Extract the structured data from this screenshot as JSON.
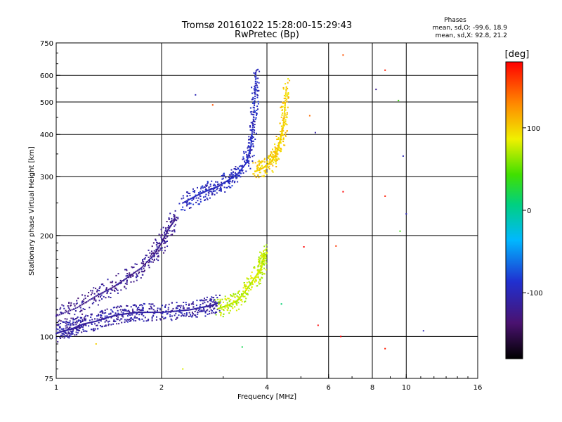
{
  "header": {
    "title_line1": "Tromsø 20161022 15:28:00-15:29:43",
    "title_line2": "RwPretec (Bp)",
    "phases_title": "Phases",
    "phases_o": "mean, sd,O: -99.6, 18.9",
    "phases_x": "mean, sd,X:  92.8, 21.2"
  },
  "colorbar": {
    "label": "[deg]",
    "ticks": [
      {
        "label": "100",
        "value": 100
      },
      {
        "label": "0",
        "value": 0
      },
      {
        "label": "-100",
        "value": -100
      }
    ],
    "range": [
      -180,
      180
    ]
  },
  "chart_data": {
    "type": "scatter",
    "xlabel": "Frequency [MHz]",
    "ylabel": "Stationary phase Virtual Height [km]",
    "xscale": "log",
    "yscale": "log",
    "xlim": [
      1,
      16
    ],
    "ylim": [
      75,
      750
    ],
    "xticks": [
      {
        "v": 1,
        "label": "1"
      },
      {
        "v": 2,
        "label": "2"
      },
      {
        "v": 4,
        "label": "4"
      },
      {
        "v": 6,
        "label": "6"
      },
      {
        "v": 8,
        "label": "8"
      },
      {
        "v": 10,
        "label": "10"
      },
      {
        "v": 16,
        "label": "16"
      }
    ],
    "xgrid": [
      2,
      4,
      6,
      8,
      10
    ],
    "yticks": [
      {
        "v": 75,
        "label": "75"
      },
      {
        "v": 100,
        "label": "100"
      },
      {
        "v": 200,
        "label": "200"
      },
      {
        "v": 300,
        "label": "300"
      },
      {
        "v": 400,
        "label": "400"
      },
      {
        "v": 500,
        "label": "500"
      },
      {
        "v": 600,
        "label": "600"
      },
      {
        "v": 750,
        "label": "750"
      }
    ],
    "ygrid": [
      100,
      200,
      300,
      400,
      500,
      600
    ],
    "grid": true,
    "traces": [
      {
        "color_deg": -110,
        "points": [
          [
            1.0,
            102
          ],
          [
            1.05,
            104
          ],
          [
            1.1,
            105
          ],
          [
            1.15,
            107
          ],
          [
            1.2,
            109
          ],
          [
            1.3,
            111
          ],
          [
            1.4,
            114
          ],
          [
            1.5,
            116
          ],
          [
            1.6,
            117
          ],
          [
            1.7,
            118
          ],
          [
            1.8,
            118
          ],
          [
            2.0,
            118
          ],
          [
            2.2,
            119
          ],
          [
            2.4,
            120
          ],
          [
            2.6,
            122
          ],
          [
            2.8,
            124
          ],
          [
            2.9,
            126
          ]
        ]
      },
      {
        "color_deg": -120,
        "points": [
          [
            1.0,
            115
          ],
          [
            1.15,
            122
          ],
          [
            1.3,
            132
          ],
          [
            1.45,
            140
          ],
          [
            1.6,
            150
          ],
          [
            1.75,
            160
          ],
          [
            1.9,
            175
          ],
          [
            2.0,
            190
          ],
          [
            2.1,
            210
          ],
          [
            2.2,
            225
          ]
        ]
      },
      {
        "color_deg": -95,
        "points": [
          [
            2.3,
            250
          ],
          [
            2.5,
            262
          ],
          [
            2.7,
            272
          ],
          [
            2.9,
            280
          ],
          [
            3.1,
            292
          ],
          [
            3.3,
            305
          ],
          [
            3.5,
            330
          ],
          [
            3.6,
            370
          ],
          [
            3.65,
            430
          ],
          [
            3.7,
            520
          ],
          [
            3.72,
            620
          ]
        ]
      },
      {
        "color_deg": 100,
        "points": [
          [
            3.7,
            310
          ],
          [
            3.9,
            318
          ],
          [
            4.1,
            330
          ],
          [
            4.25,
            350
          ],
          [
            4.35,
            380
          ],
          [
            4.45,
            420
          ],
          [
            4.5,
            480
          ],
          [
            4.55,
            560
          ]
        ]
      },
      {
        "color_deg": 75,
        "points": [
          [
            2.9,
            121
          ],
          [
            3.1,
            124
          ],
          [
            3.3,
            128
          ],
          [
            3.5,
            138
          ],
          [
            3.7,
            150
          ],
          [
            3.85,
            160
          ],
          [
            3.9,
            168
          ],
          [
            3.92,
            178
          ]
        ]
      }
    ],
    "scattered_points": [
      {
        "f": 2.5,
        "h": 525,
        "deg": -100
      },
      {
        "f": 6.6,
        "h": 690,
        "deg": 150
      },
      {
        "f": 8.7,
        "h": 622,
        "deg": 170
      },
      {
        "f": 8.2,
        "h": 545,
        "deg": -120
      },
      {
        "f": 9.5,
        "h": 505,
        "deg": 40
      },
      {
        "f": 9.8,
        "h": 345,
        "deg": -100
      },
      {
        "f": 6.6,
        "h": 270,
        "deg": 180
      },
      {
        "f": 8.7,
        "h": 262,
        "deg": 170
      },
      {
        "f": 10.0,
        "h": 232,
        "deg": -100
      },
      {
        "f": 9.6,
        "h": 206,
        "deg": 40
      },
      {
        "f": 8.7,
        "h": 92,
        "deg": 170
      },
      {
        "f": 11.2,
        "h": 104,
        "deg": -100
      },
      {
        "f": 6.5,
        "h": 100,
        "deg": 180
      },
      {
        "f": 3.4,
        "h": 93,
        "deg": 20
      },
      {
        "f": 1.3,
        "h": 95,
        "deg": 100
      },
      {
        "f": 2.3,
        "h": 80,
        "deg": 80
      },
      {
        "f": 6.3,
        "h": 186,
        "deg": 160
      },
      {
        "f": 5.1,
        "h": 185,
        "deg": 180
      },
      {
        "f": 4.4,
        "h": 125,
        "deg": 10
      },
      {
        "f": 5.6,
        "h": 108,
        "deg": 180
      },
      {
        "f": 5.3,
        "h": 455,
        "deg": 140
      },
      {
        "f": 5.5,
        "h": 405,
        "deg": -110
      },
      {
        "f": 2.8,
        "h": 490,
        "deg": 150
      }
    ]
  }
}
